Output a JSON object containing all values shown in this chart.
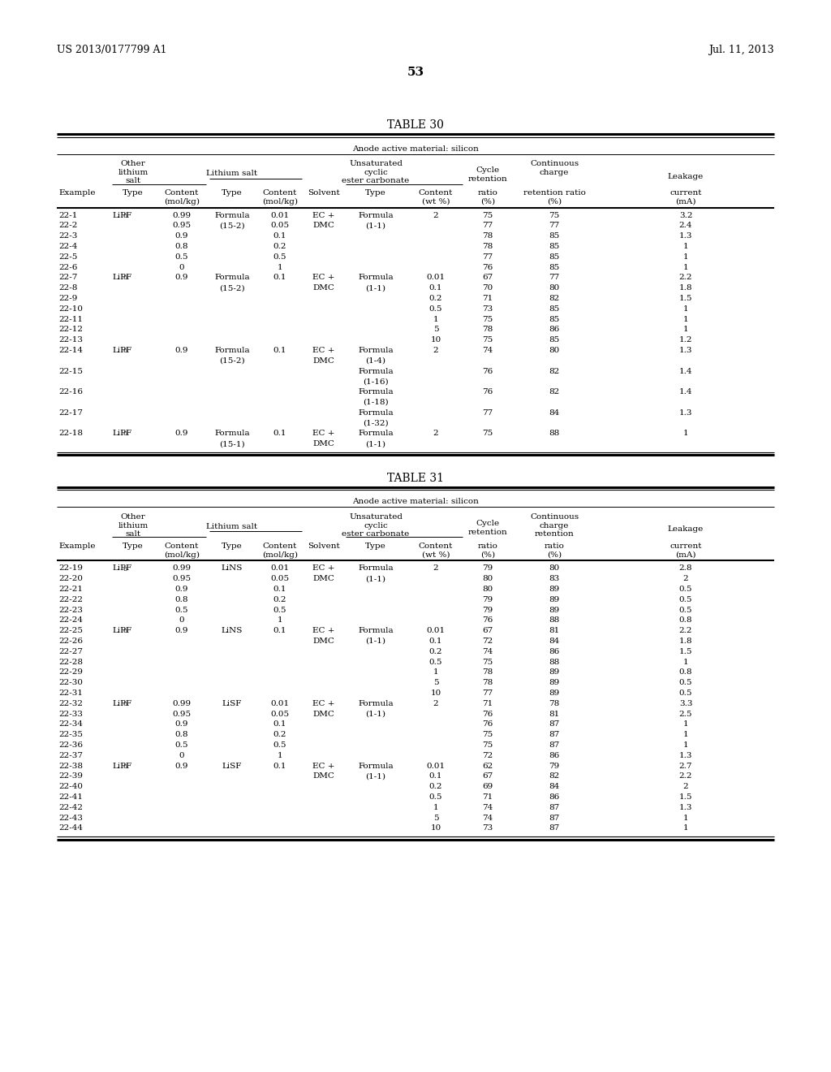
{
  "header_left": "US 2013/0177799 A1",
  "header_right": "Jul. 11, 2013",
  "page_number": "53",
  "table30_title": "TABLE 30",
  "table30_subtitle": "Anode active material: silicon",
  "table31_title": "TABLE 31",
  "table31_subtitle": "Anode active material: silicon",
  "table30_rows": [
    [
      "22-1",
      "LiPF6",
      "0.99",
      "Formula",
      "0.01",
      "EC +",
      "Formula",
      "2",
      "75",
      "75",
      "3.2"
    ],
    [
      "22-2",
      "",
      "0.95",
      "(15-2)",
      "0.05",
      "DMC",
      "(1-1)",
      "",
      "77",
      "77",
      "2.4"
    ],
    [
      "22-3",
      "",
      "0.9",
      "",
      "0.1",
      "",
      "",
      "",
      "78",
      "85",
      "1.3"
    ],
    [
      "22-4",
      "",
      "0.8",
      "",
      "0.2",
      "",
      "",
      "",
      "78",
      "85",
      "1"
    ],
    [
      "22-5",
      "",
      "0.5",
      "",
      "0.5",
      "",
      "",
      "",
      "77",
      "85",
      "1"
    ],
    [
      "22-6",
      "",
      "0",
      "",
      "1",
      "",
      "",
      "",
      "76",
      "85",
      "1"
    ],
    [
      "22-7",
      "LiPF6",
      "0.9",
      "Formula",
      "0.1",
      "EC +",
      "Formula",
      "0.01",
      "67",
      "77",
      "2.2"
    ],
    [
      "22-8",
      "",
      "",
      "(15-2)",
      "",
      "DMC",
      "(1-1)",
      "0.1",
      "70",
      "80",
      "1.8"
    ],
    [
      "22-9",
      "",
      "",
      "",
      "",
      "",
      "",
      "0.2",
      "71",
      "82",
      "1.5"
    ],
    [
      "22-10",
      "",
      "",
      "",
      "",
      "",
      "",
      "0.5",
      "73",
      "85",
      "1"
    ],
    [
      "22-11",
      "",
      "",
      "",
      "",
      "",
      "",
      "1",
      "75",
      "85",
      "1"
    ],
    [
      "22-12",
      "",
      "",
      "",
      "",
      "",
      "",
      "5",
      "78",
      "86",
      "1"
    ],
    [
      "22-13",
      "",
      "",
      "",
      "",
      "",
      "",
      "10",
      "75",
      "85",
      "1.2"
    ],
    [
      "22-14",
      "LiPF6",
      "0.9",
      "Formula",
      "0.1",
      "EC +",
      "Formula",
      "2",
      "74",
      "80",
      "1.3"
    ],
    [
      "",
      "",
      "",
      "(15-2)",
      "",
      "DMC",
      "(1-4)",
      "",
      "",
      "",
      ""
    ],
    [
      "22-15",
      "",
      "",
      "",
      "",
      "",
      "Formula",
      "",
      "76",
      "82",
      "1.4"
    ],
    [
      "",
      "",
      "",
      "",
      "",
      "",
      "(1-16)",
      "",
      "",
      "",
      ""
    ],
    [
      "22-16",
      "",
      "",
      "",
      "",
      "",
      "Formula",
      "",
      "76",
      "82",
      "1.4"
    ],
    [
      "",
      "",
      "",
      "",
      "",
      "",
      "(1-18)",
      "",
      "",
      "",
      ""
    ],
    [
      "22-17",
      "",
      "",
      "",
      "",
      "",
      "Formula",
      "",
      "77",
      "84",
      "1.3"
    ],
    [
      "",
      "",
      "",
      "",
      "",
      "",
      "(1-32)",
      "",
      "",
      "",
      ""
    ],
    [
      "22-18",
      "LiPF6",
      "0.9",
      "Formula",
      "0.1",
      "EC +",
      "Formula",
      "2",
      "75",
      "88",
      "1"
    ],
    [
      "",
      "",
      "",
      "(15-1)",
      "",
      "DMC",
      "(1-1)",
      "",
      "",
      "",
      ""
    ]
  ],
  "table31_rows": [
    [
      "22-19",
      "LiPF6",
      "0.99",
      "LiNS",
      "0.01",
      "EC +",
      "Formula",
      "2",
      "79",
      "80",
      "2.8"
    ],
    [
      "22-20",
      "",
      "0.95",
      "",
      "0.05",
      "DMC",
      "(1-1)",
      "",
      "80",
      "83",
      "2"
    ],
    [
      "22-21",
      "",
      "0.9",
      "",
      "0.1",
      "",
      "",
      "",
      "80",
      "89",
      "0.5"
    ],
    [
      "22-22",
      "",
      "0.8",
      "",
      "0.2",
      "",
      "",
      "",
      "79",
      "89",
      "0.5"
    ],
    [
      "22-23",
      "",
      "0.5",
      "",
      "0.5",
      "",
      "",
      "",
      "79",
      "89",
      "0.5"
    ],
    [
      "22-24",
      "",
      "0",
      "",
      "1",
      "",
      "",
      "",
      "76",
      "88",
      "0.8"
    ],
    [
      "22-25",
      "LiPF6",
      "0.9",
      "LiNS",
      "0.1",
      "EC +",
      "Formula",
      "0.01",
      "67",
      "81",
      "2.2"
    ],
    [
      "22-26",
      "",
      "",
      "",
      "",
      "DMC",
      "(1-1)",
      "0.1",
      "72",
      "84",
      "1.8"
    ],
    [
      "22-27",
      "",
      "",
      "",
      "",
      "",
      "",
      "0.2",
      "74",
      "86",
      "1.5"
    ],
    [
      "22-28",
      "",
      "",
      "",
      "",
      "",
      "",
      "0.5",
      "75",
      "88",
      "1"
    ],
    [
      "22-29",
      "",
      "",
      "",
      "",
      "",
      "",
      "1",
      "78",
      "89",
      "0.8"
    ],
    [
      "22-30",
      "",
      "",
      "",
      "",
      "",
      "",
      "5",
      "78",
      "89",
      "0.5"
    ],
    [
      "22-31",
      "",
      "",
      "",
      "",
      "",
      "",
      "10",
      "77",
      "89",
      "0.5"
    ],
    [
      "22-32",
      "LiPF6",
      "0.99",
      "LiSF",
      "0.01",
      "EC +",
      "Formula",
      "2",
      "71",
      "78",
      "3.3"
    ],
    [
      "22-33",
      "",
      "0.95",
      "",
      "0.05",
      "DMC",
      "(1-1)",
      "",
      "76",
      "81",
      "2.5"
    ],
    [
      "22-34",
      "",
      "0.9",
      "",
      "0.1",
      "",
      "",
      "",
      "76",
      "87",
      "1"
    ],
    [
      "22-35",
      "",
      "0.8",
      "",
      "0.2",
      "",
      "",
      "",
      "75",
      "87",
      "1"
    ],
    [
      "22-36",
      "",
      "0.5",
      "",
      "0.5",
      "",
      "",
      "",
      "75",
      "87",
      "1"
    ],
    [
      "22-37",
      "",
      "0",
      "",
      "1",
      "",
      "",
      "",
      "72",
      "86",
      "1.3"
    ],
    [
      "22-38",
      "LiPF6",
      "0.9",
      "LiSF",
      "0.1",
      "EC +",
      "Formula",
      "0.01",
      "62",
      "79",
      "2.7"
    ],
    [
      "22-39",
      "",
      "",
      "",
      "",
      "DMC",
      "(1-1)",
      "0.1",
      "67",
      "82",
      "2.2"
    ],
    [
      "22-40",
      "",
      "",
      "",
      "",
      "",
      "",
      "0.2",
      "69",
      "84",
      "2"
    ],
    [
      "22-41",
      "",
      "",
      "",
      "",
      "",
      "",
      "0.5",
      "71",
      "86",
      "1.5"
    ],
    [
      "22-42",
      "",
      "",
      "",
      "",
      "",
      "",
      "1",
      "74",
      "87",
      "1.3"
    ],
    [
      "22-43",
      "",
      "",
      "",
      "",
      "",
      "",
      "5",
      "74",
      "87",
      "1"
    ],
    [
      "22-44",
      "",
      "",
      "",
      "",
      "",
      "",
      "10",
      "73",
      "87",
      "1"
    ]
  ],
  "font_size": 8.0,
  "bg_color": "#ffffff"
}
